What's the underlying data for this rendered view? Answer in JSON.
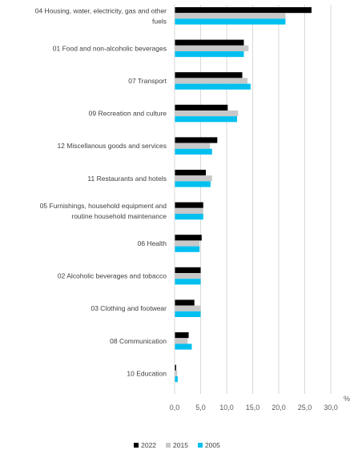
{
  "chart_data": {
    "type": "bar",
    "orientation": "horizontal",
    "categories": [
      [
        "04 Housing, water, electricity, gas and other",
        "fuels"
      ],
      [
        "01 Food and non-alcoholic beverages"
      ],
      [
        "07 Transport"
      ],
      [
        "09 Recreation and culture"
      ],
      [
        "12 Miscellanous goods and services"
      ],
      [
        "11 Restaurants and hotels"
      ],
      [
        "05 Furnishings, household equipment and",
        "routine household maintenance"
      ],
      [
        "06 Health"
      ],
      [
        "02 Alcoholic beverages and tobacco"
      ],
      [
        "03 Clothing and footwear"
      ],
      [
        "08 Communication"
      ],
      [
        "10 Education"
      ]
    ],
    "series": [
      {
        "name": "2022",
        "color": "#000000",
        "values": [
          26.3,
          13.3,
          13.0,
          10.2,
          8.2,
          6.0,
          5.5,
          5.2,
          5.0,
          3.8,
          2.7,
          0.3
        ]
      },
      {
        "name": "2015",
        "color": "#c8c8c8",
        "values": [
          21.3,
          14.2,
          14.0,
          12.2,
          6.8,
          7.2,
          5.5,
          4.8,
          5.0,
          5.0,
          2.5,
          0.5
        ]
      },
      {
        "name": "2005",
        "color": "#00c0f0",
        "values": [
          21.3,
          13.3,
          14.6,
          12.0,
          7.2,
          6.9,
          5.5,
          4.8,
          5.0,
          5.0,
          3.3,
          0.6
        ]
      }
    ],
    "xlim": [
      0,
      30
    ],
    "xticks": [
      "0,0",
      "5,0",
      "10,0",
      "15,0",
      "20,0",
      "25,0",
      "30,0"
    ],
    "unit_label": "%",
    "grid": true,
    "legend_position": "bottom"
  }
}
